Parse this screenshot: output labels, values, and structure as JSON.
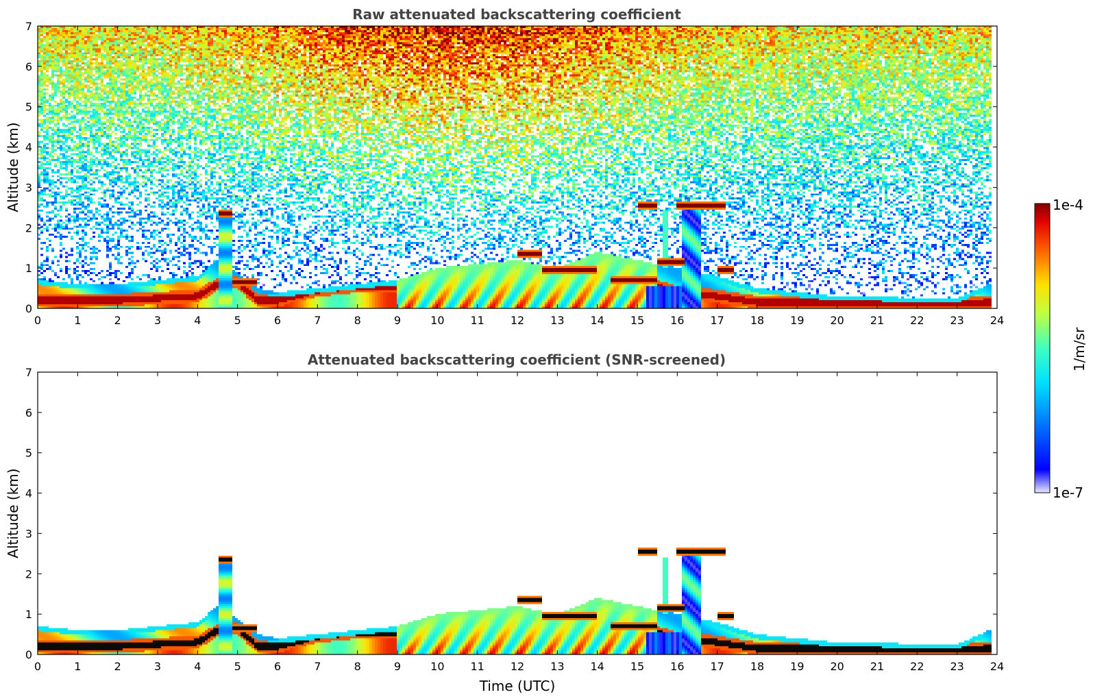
{
  "chart_data": [
    {
      "type": "heatmap",
      "title": "Raw attenuated backscattering coefficient",
      "xlabel": "",
      "ylabel": "Altitude (km)",
      "xlim": [
        0,
        24
      ],
      "ylim": [
        0,
        7
      ],
      "xticks": [
        "0",
        "1",
        "2",
        "3",
        "4",
        "5",
        "6",
        "7",
        "8",
        "9",
        "10",
        "11",
        "12",
        "13",
        "14",
        "15",
        "16",
        "17",
        "18",
        "19",
        "20",
        "21",
        "22",
        "23",
        "24"
      ],
      "yticks": [
        "0",
        "1",
        "2",
        "3",
        "4",
        "5",
        "6",
        "7"
      ],
      "noise": "raw",
      "boundary_layer": {
        "time_utc": [
          0,
          1,
          2,
          3,
          4,
          4.5,
          5,
          5.5,
          6,
          7,
          8,
          9,
          10,
          11,
          12,
          13,
          14,
          15,
          16,
          17,
          18,
          19,
          20,
          21,
          22,
          23,
          23.8
        ],
        "top_km": [
          0.7,
          0.6,
          0.6,
          0.7,
          0.8,
          1.2,
          0.9,
          0.5,
          0.4,
          0.5,
          0.6,
          0.7,
          1.0,
          1.1,
          1.2,
          1.0,
          1.4,
          1.2,
          1.0,
          0.8,
          0.5,
          0.4,
          0.3,
          0.3,
          0.25,
          0.25,
          0.6
        ],
        "peak_km": [
          0.2,
          0.2,
          0.2,
          0.25,
          0.3,
          0.6,
          0.65,
          0.2,
          0.2,
          0.45,
          0.55,
          0.55,
          0.5,
          0.8,
          1.3,
          0.95,
          0.8,
          0.65,
          0.4,
          0.3,
          0.15,
          0.15,
          0.15,
          0.12,
          0.12,
          0.12,
          0.15
        ]
      },
      "cloud_layers": [
        {
          "t0": 4.55,
          "t1": 4.85,
          "alt_km": 2.35
        },
        {
          "t0": 4.9,
          "t1": 5.5,
          "alt_km": 0.65
        },
        {
          "t0": 12.0,
          "t1": 12.6,
          "alt_km": 1.35
        },
        {
          "t0": 12.6,
          "t1": 14.0,
          "alt_km": 0.95
        },
        {
          "t0": 14.3,
          "t1": 15.5,
          "alt_km": 0.7
        },
        {
          "t0": 15.0,
          "t1": 15.5,
          "alt_km": 2.55
        },
        {
          "t0": 15.5,
          "t1": 16.2,
          "alt_km": 1.15
        },
        {
          "t0": 16.0,
          "t1": 17.2,
          "alt_km": 2.55
        },
        {
          "t0": 17.0,
          "t1": 17.4,
          "alt_km": 0.95
        }
      ]
    },
    {
      "type": "heatmap",
      "title": "Attenuated backscattering coefficient (SNR-screened)",
      "xlabel": "Time (UTC)",
      "ylabel": "Altitude (km)",
      "xlim": [
        0,
        24
      ],
      "ylim": [
        0,
        7
      ],
      "xticks": [
        "0",
        "1",
        "2",
        "3",
        "4",
        "5",
        "6",
        "7",
        "8",
        "9",
        "10",
        "11",
        "12",
        "13",
        "14",
        "15",
        "16",
        "17",
        "18",
        "19",
        "20",
        "21",
        "22",
        "23",
        "24"
      ],
      "yticks": [
        "0",
        "1",
        "2",
        "3",
        "4",
        "5",
        "6",
        "7"
      ],
      "noise": "screened"
    }
  ],
  "colorbar": {
    "label": "1/m/sr",
    "max_label": "1e-4",
    "min_label": "1e-7",
    "scale": "log",
    "colormap": "jet"
  }
}
